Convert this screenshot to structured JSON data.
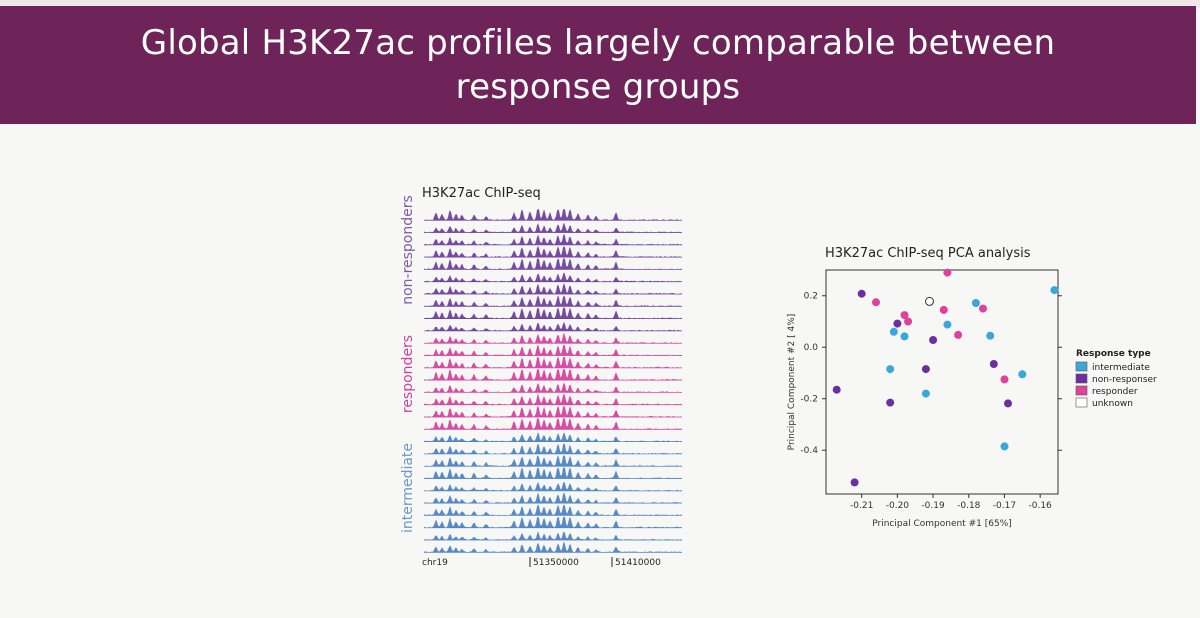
{
  "slide": {
    "title": "Global H3K27ac profiles largely comparable between\nresponse groups"
  },
  "colors": {
    "banner": "#6e2459",
    "non_responder": "#6a3d9a",
    "responder": "#d33f9a",
    "intermediate": "#4a80c0",
    "pca_intermediate": "#3aa7dc",
    "pca_non_responder": "#6a30a0",
    "pca_responder": "#e0419a"
  },
  "chip_panel": {
    "title": "H3K27ac ChIP-seq",
    "groups": [
      {
        "label": "non-responders",
        "tracks": 10,
        "color_key": "non_responder"
      },
      {
        "label": "responders",
        "tracks": 8,
        "color_key": "responder"
      },
      {
        "label": "intermediate",
        "tracks": 10,
        "color_key": "intermediate"
      }
    ],
    "chromosome": "chr19",
    "coordinates": [
      "51350000",
      "51410000"
    ]
  },
  "chart_data": {
    "type": "scatter",
    "title": "H3K27ac ChIP-seq PCA analysis",
    "xlabel": "Principal Component #1 [65%]",
    "ylabel": "Principal Component #2 [ 4%]",
    "xlim": [
      -0.22,
      -0.155
    ],
    "ylim": [
      -0.57,
      0.3
    ],
    "xticks": [
      -0.21,
      -0.2,
      -0.19,
      -0.18,
      -0.17,
      -0.16
    ],
    "xtick_labels": [
      "-0.21",
      "-0.20",
      "-0.19",
      "-0.18",
      "-0.17",
      "-0.16"
    ],
    "yticks": [
      0.2,
      0.0,
      -0.2,
      -0.4
    ],
    "ytick_labels": [
      "0.2",
      "0.0",
      "-0.2",
      "-0.4"
    ],
    "legend": {
      "title": "Response type",
      "position": "right",
      "entries": [
        "intermediate",
        "non-responser",
        "responder",
        "unknown"
      ]
    },
    "series": [
      {
        "name": "intermediate",
        "color": "#3aa7dc",
        "points": [
          [
            -0.156,
            0.222
          ],
          [
            -0.201,
            0.06
          ],
          [
            -0.198,
            0.042
          ],
          [
            -0.186,
            0.088
          ],
          [
            -0.178,
            0.172
          ],
          [
            -0.174,
            0.045
          ],
          [
            -0.202,
            -0.085
          ],
          [
            -0.192,
            -0.18
          ],
          [
            -0.165,
            -0.105
          ],
          [
            -0.17,
            -0.385
          ]
        ]
      },
      {
        "name": "non-responser",
        "color": "#6a30a0",
        "points": [
          [
            -0.21,
            0.208
          ],
          [
            -0.2,
            0.092
          ],
          [
            -0.19,
            0.028
          ],
          [
            -0.192,
            -0.085
          ],
          [
            -0.202,
            -0.215
          ],
          [
            -0.173,
            -0.065
          ],
          [
            -0.169,
            -0.218
          ],
          [
            -0.217,
            -0.165
          ],
          [
            -0.212,
            -0.525
          ]
        ]
      },
      {
        "name": "responder",
        "color": "#e0419a",
        "points": [
          [
            -0.186,
            0.29
          ],
          [
            -0.206,
            0.175
          ],
          [
            -0.198,
            0.125
          ],
          [
            -0.197,
            0.1
          ],
          [
            -0.187,
            0.145
          ],
          [
            -0.176,
            0.15
          ],
          [
            -0.183,
            0.048
          ],
          [
            -0.17,
            -0.125
          ]
        ]
      },
      {
        "name": "unknown",
        "color": "none",
        "points": [
          [
            -0.191,
            0.178
          ]
        ]
      }
    ]
  }
}
